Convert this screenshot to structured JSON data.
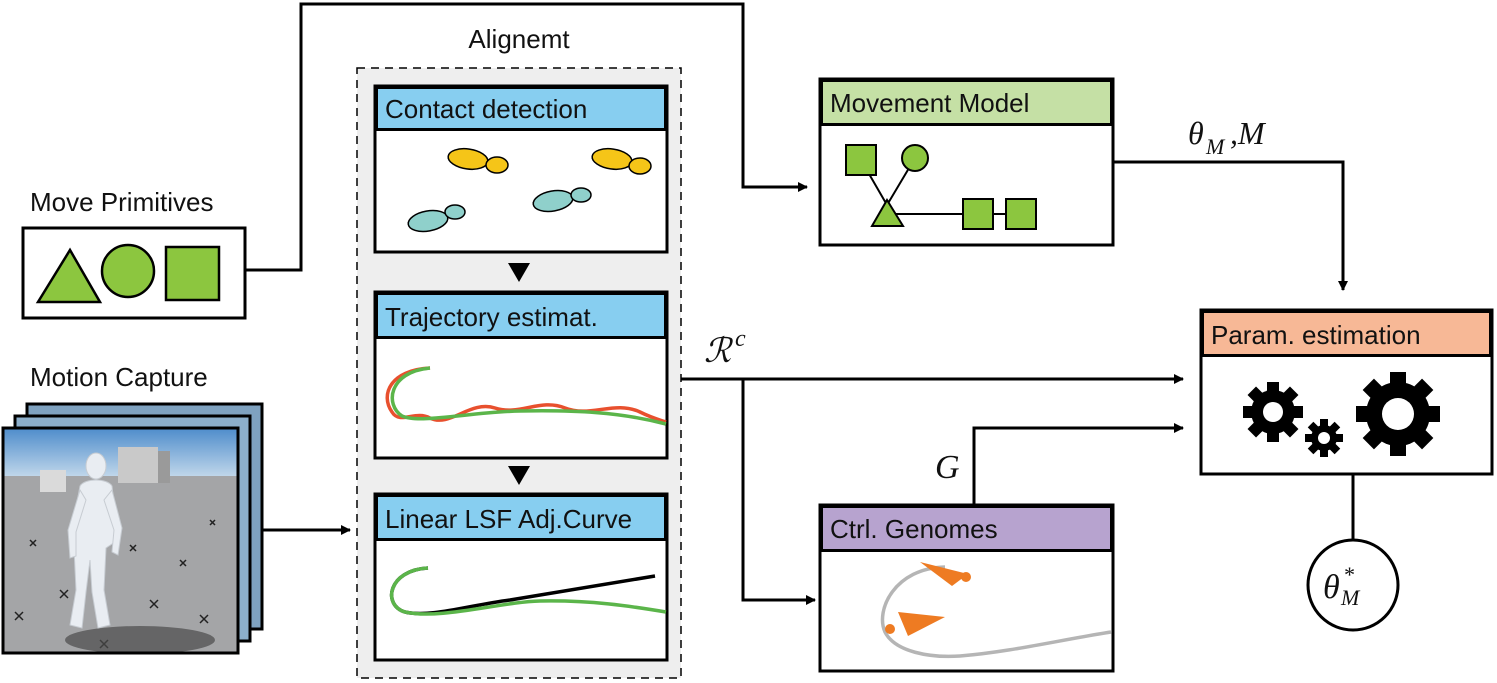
{
  "diagram": {
    "alignment_title": "Alignemt",
    "move_primitives": {
      "label": "Move Primitives"
    },
    "motion_capture": {
      "label": "Motion Capture"
    },
    "contact_detection": {
      "label": "Contact detection"
    },
    "trajectory_estimation": {
      "label": "Trajectory estimat."
    },
    "linear_lsf": {
      "label": "Linear LSF Adj.Curve"
    },
    "movement_model": {
      "label": "Movement Model"
    },
    "param_estimation": {
      "label": "Param. estimation"
    },
    "ctrl_genomes": {
      "label": "Ctrl. Genomes"
    },
    "edge_labels": {
      "theta_m": {
        "base": "θ",
        "sub": "M",
        "suffix": ",M"
      },
      "r_c": {
        "base": "ℛ",
        "sup": "c"
      },
      "g": "G",
      "theta_star": {
        "base": "θ",
        "sup": "*",
        "sub": "M"
      }
    },
    "colors": {
      "blue_header": "#87CEF0",
      "green_header": "#C5E0A5",
      "orange_header": "#F7B896",
      "purple_header": "#B7A3CF",
      "shape_green": "#8CC63F",
      "foot_yellow": "#F5C518",
      "foot_teal": "#8FD0CB",
      "curve_red": "#E8502E",
      "curve_green": "#5BB54A",
      "arrow_orange": "#EE7B22",
      "path_gray": "#B5B5B5"
    }
  }
}
